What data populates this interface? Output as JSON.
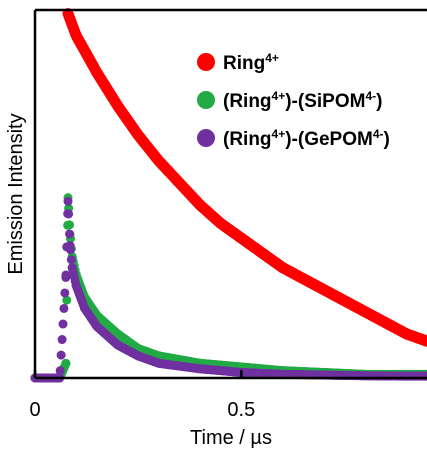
{
  "chart_data": {
    "type": "scatter",
    "title": "",
    "xlabel": "Time / µs",
    "ylabel": "Emission Intensity",
    "xlim": [
      0,
      0.95
    ],
    "ylim": [
      0,
      1.0
    ],
    "x_ticks": [
      0,
      0.5
    ],
    "x_tick_labels": [
      "0",
      "0.5"
    ],
    "y_ticks": [],
    "grid": false,
    "legend_position": "top-right",
    "series": [
      {
        "name": "Ring4+",
        "label_base": "Ring",
        "label_sup": "4+",
        "label_tail": "",
        "color": "#ff0000",
        "x": [
          0.08,
          0.1,
          0.15,
          0.2,
          0.25,
          0.3,
          0.35,
          0.4,
          0.45,
          0.5,
          0.55,
          0.6,
          0.65,
          0.7,
          0.75,
          0.8,
          0.85,
          0.9,
          0.95
        ],
        "y": [
          0.99,
          0.93,
          0.83,
          0.74,
          0.66,
          0.59,
          0.53,
          0.47,
          0.42,
          0.38,
          0.34,
          0.3,
          0.27,
          0.24,
          0.21,
          0.18,
          0.15,
          0.12,
          0.1
        ]
      },
      {
        "name": "(Ring4+)-(SiPOM4-)",
        "label_base": "(Ring",
        "label_sup": "4+",
        "label_tail": ")-(SiPOM",
        "label_sup2": "4-",
        "label_tail2": ")",
        "color": "#22aa44",
        "x": [
          0.0,
          0.02,
          0.04,
          0.06,
          0.075,
          0.08,
          0.085,
          0.09,
          0.1,
          0.12,
          0.15,
          0.2,
          0.25,
          0.3,
          0.4,
          0.5,
          0.6,
          0.7,
          0.8,
          0.9,
          0.95
        ],
        "y": [
          0.0,
          0.0,
          0.0,
          0.0,
          0.04,
          0.49,
          0.39,
          0.33,
          0.28,
          0.22,
          0.17,
          0.12,
          0.08,
          0.06,
          0.04,
          0.03,
          0.02,
          0.015,
          0.01,
          0.01,
          0.01
        ]
      },
      {
        "name": "(Ring4+)-(GePOM4-)",
        "label_base": "(Ring",
        "label_sup": "4+",
        "label_tail": ")-(GePOM",
        "label_sup2": "4-",
        "label_tail2": ")",
        "color": "#7030a0",
        "x": [
          0.0,
          0.02,
          0.04,
          0.06,
          0.075,
          0.08,
          0.085,
          0.09,
          0.1,
          0.12,
          0.15,
          0.2,
          0.25,
          0.3,
          0.4,
          0.5,
          0.6,
          0.7,
          0.8,
          0.9,
          0.95
        ],
        "y": [
          0.0,
          0.0,
          0.0,
          0.0,
          0.28,
          0.48,
          0.36,
          0.3,
          0.25,
          0.19,
          0.14,
          0.09,
          0.06,
          0.04,
          0.025,
          0.015,
          0.01,
          0.008,
          0.006,
          0.005,
          0.005
        ]
      }
    ]
  }
}
